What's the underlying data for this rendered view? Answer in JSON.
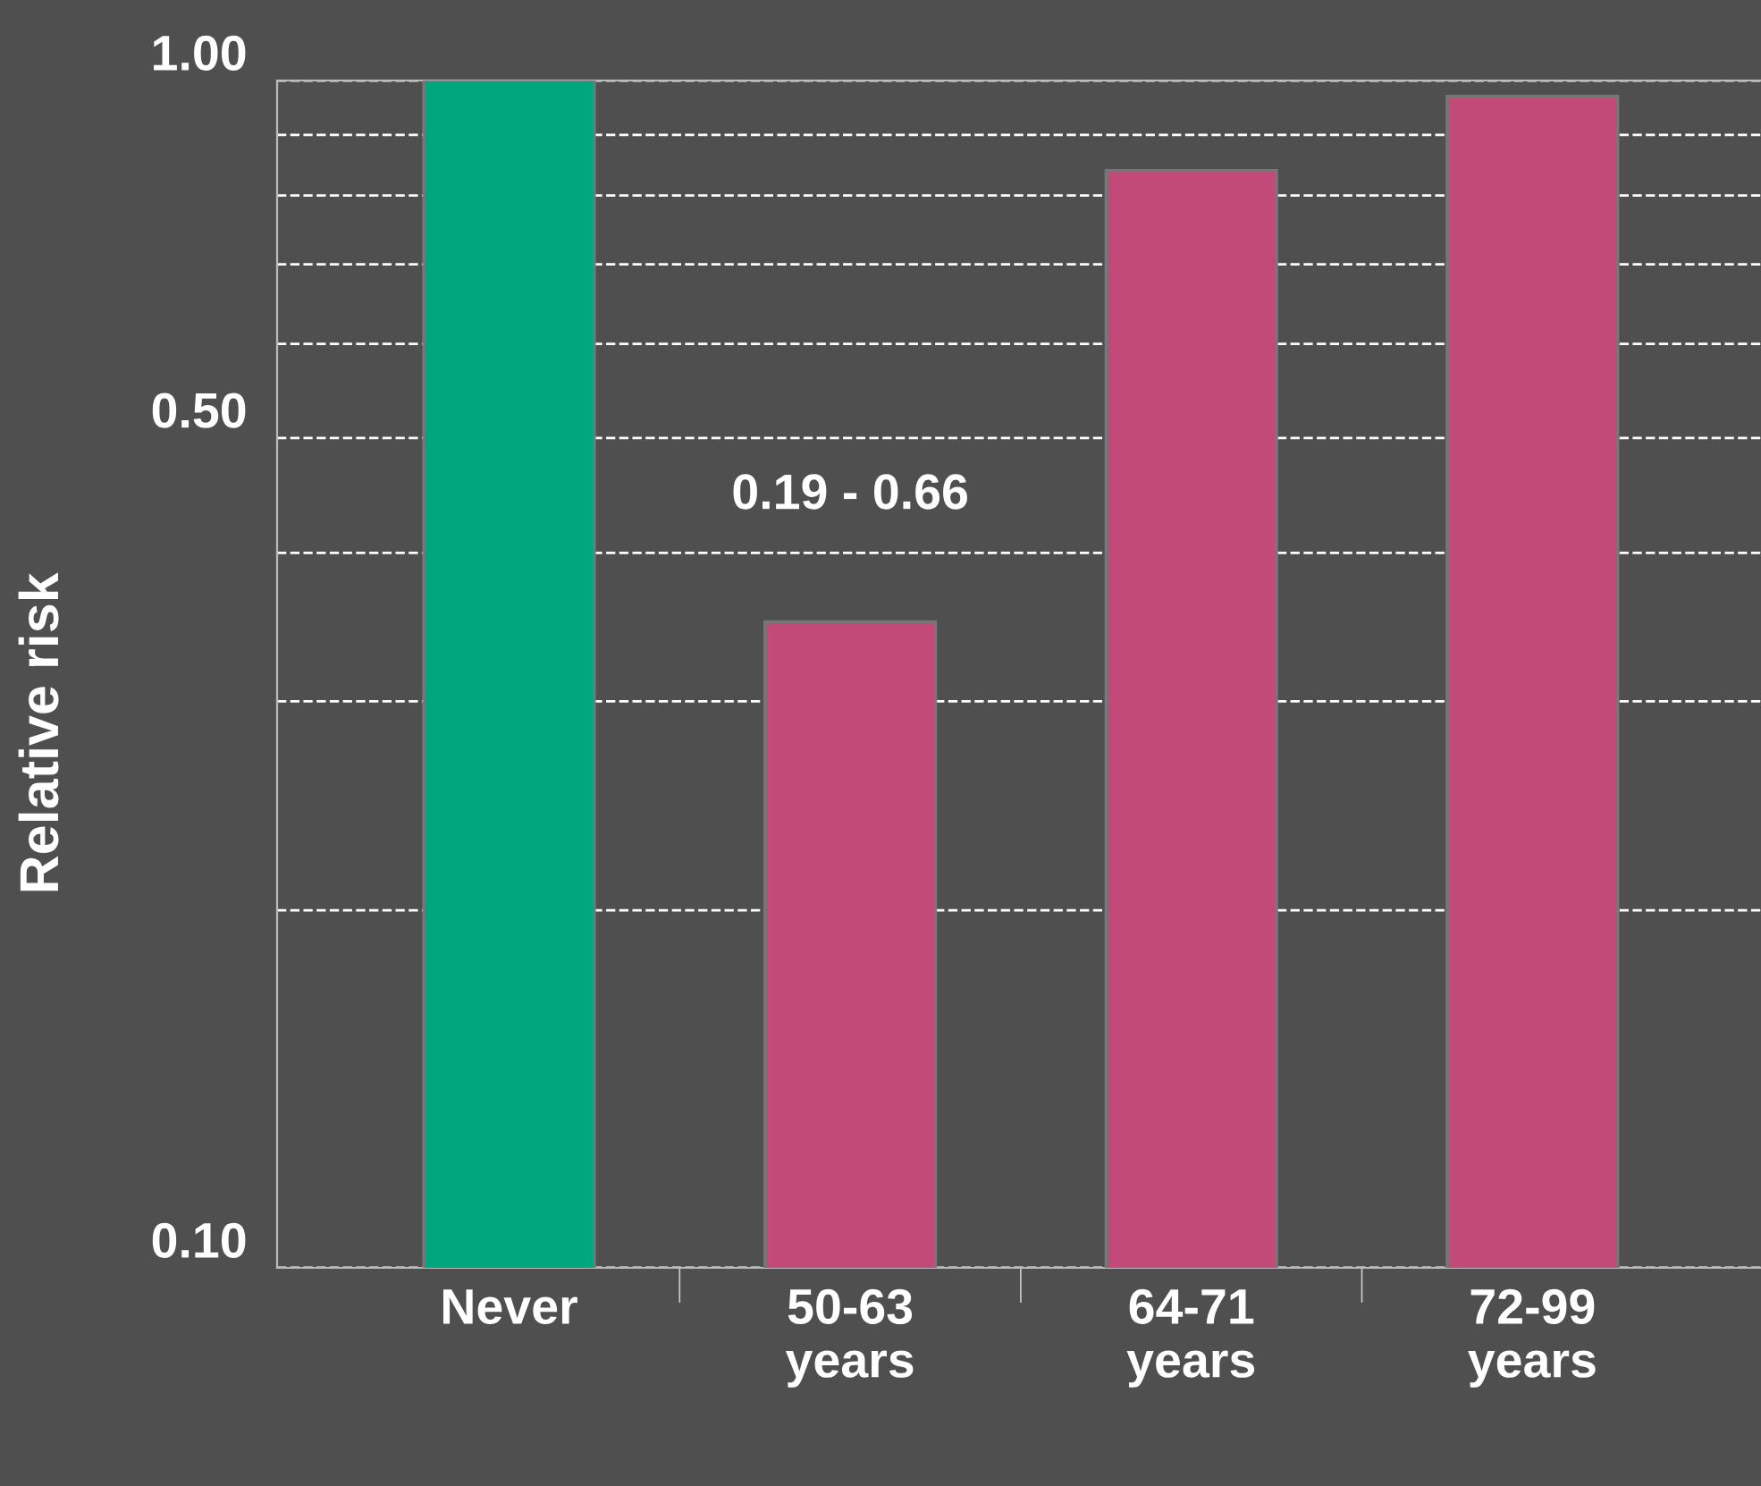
{
  "chart_data": {
    "type": "bar",
    "ylabel": "Relative risk",
    "categories": [
      "Never",
      "50-63\nyears",
      "64-71\nyears",
      "72-99\nyears"
    ],
    "values": [
      1.0,
      0.35,
      0.84,
      0.97
    ],
    "colors": [
      "#00a67c",
      "#c24a78",
      "#c24a78",
      "#c24a78"
    ],
    "log": true,
    "ylim": [
      0.1,
      1.0
    ],
    "yticks": [
      {
        "value": 0.1,
        "label": "0.10"
      },
      {
        "value": 0.2,
        "label": null
      },
      {
        "value": 0.3,
        "label": null
      },
      {
        "value": 0.4,
        "label": null
      },
      {
        "value": 0.5,
        "label": "0.50"
      },
      {
        "value": 0.6,
        "label": null
      },
      {
        "value": 0.7,
        "label": null
      },
      {
        "value": 0.8,
        "label": null
      },
      {
        "value": 0.9,
        "label": null
      },
      {
        "value": 1.0,
        "label": "1.00"
      }
    ],
    "grid": "y",
    "line_style": "dashed",
    "annotations": [
      "0.19 - 0.66"
    ]
  }
}
